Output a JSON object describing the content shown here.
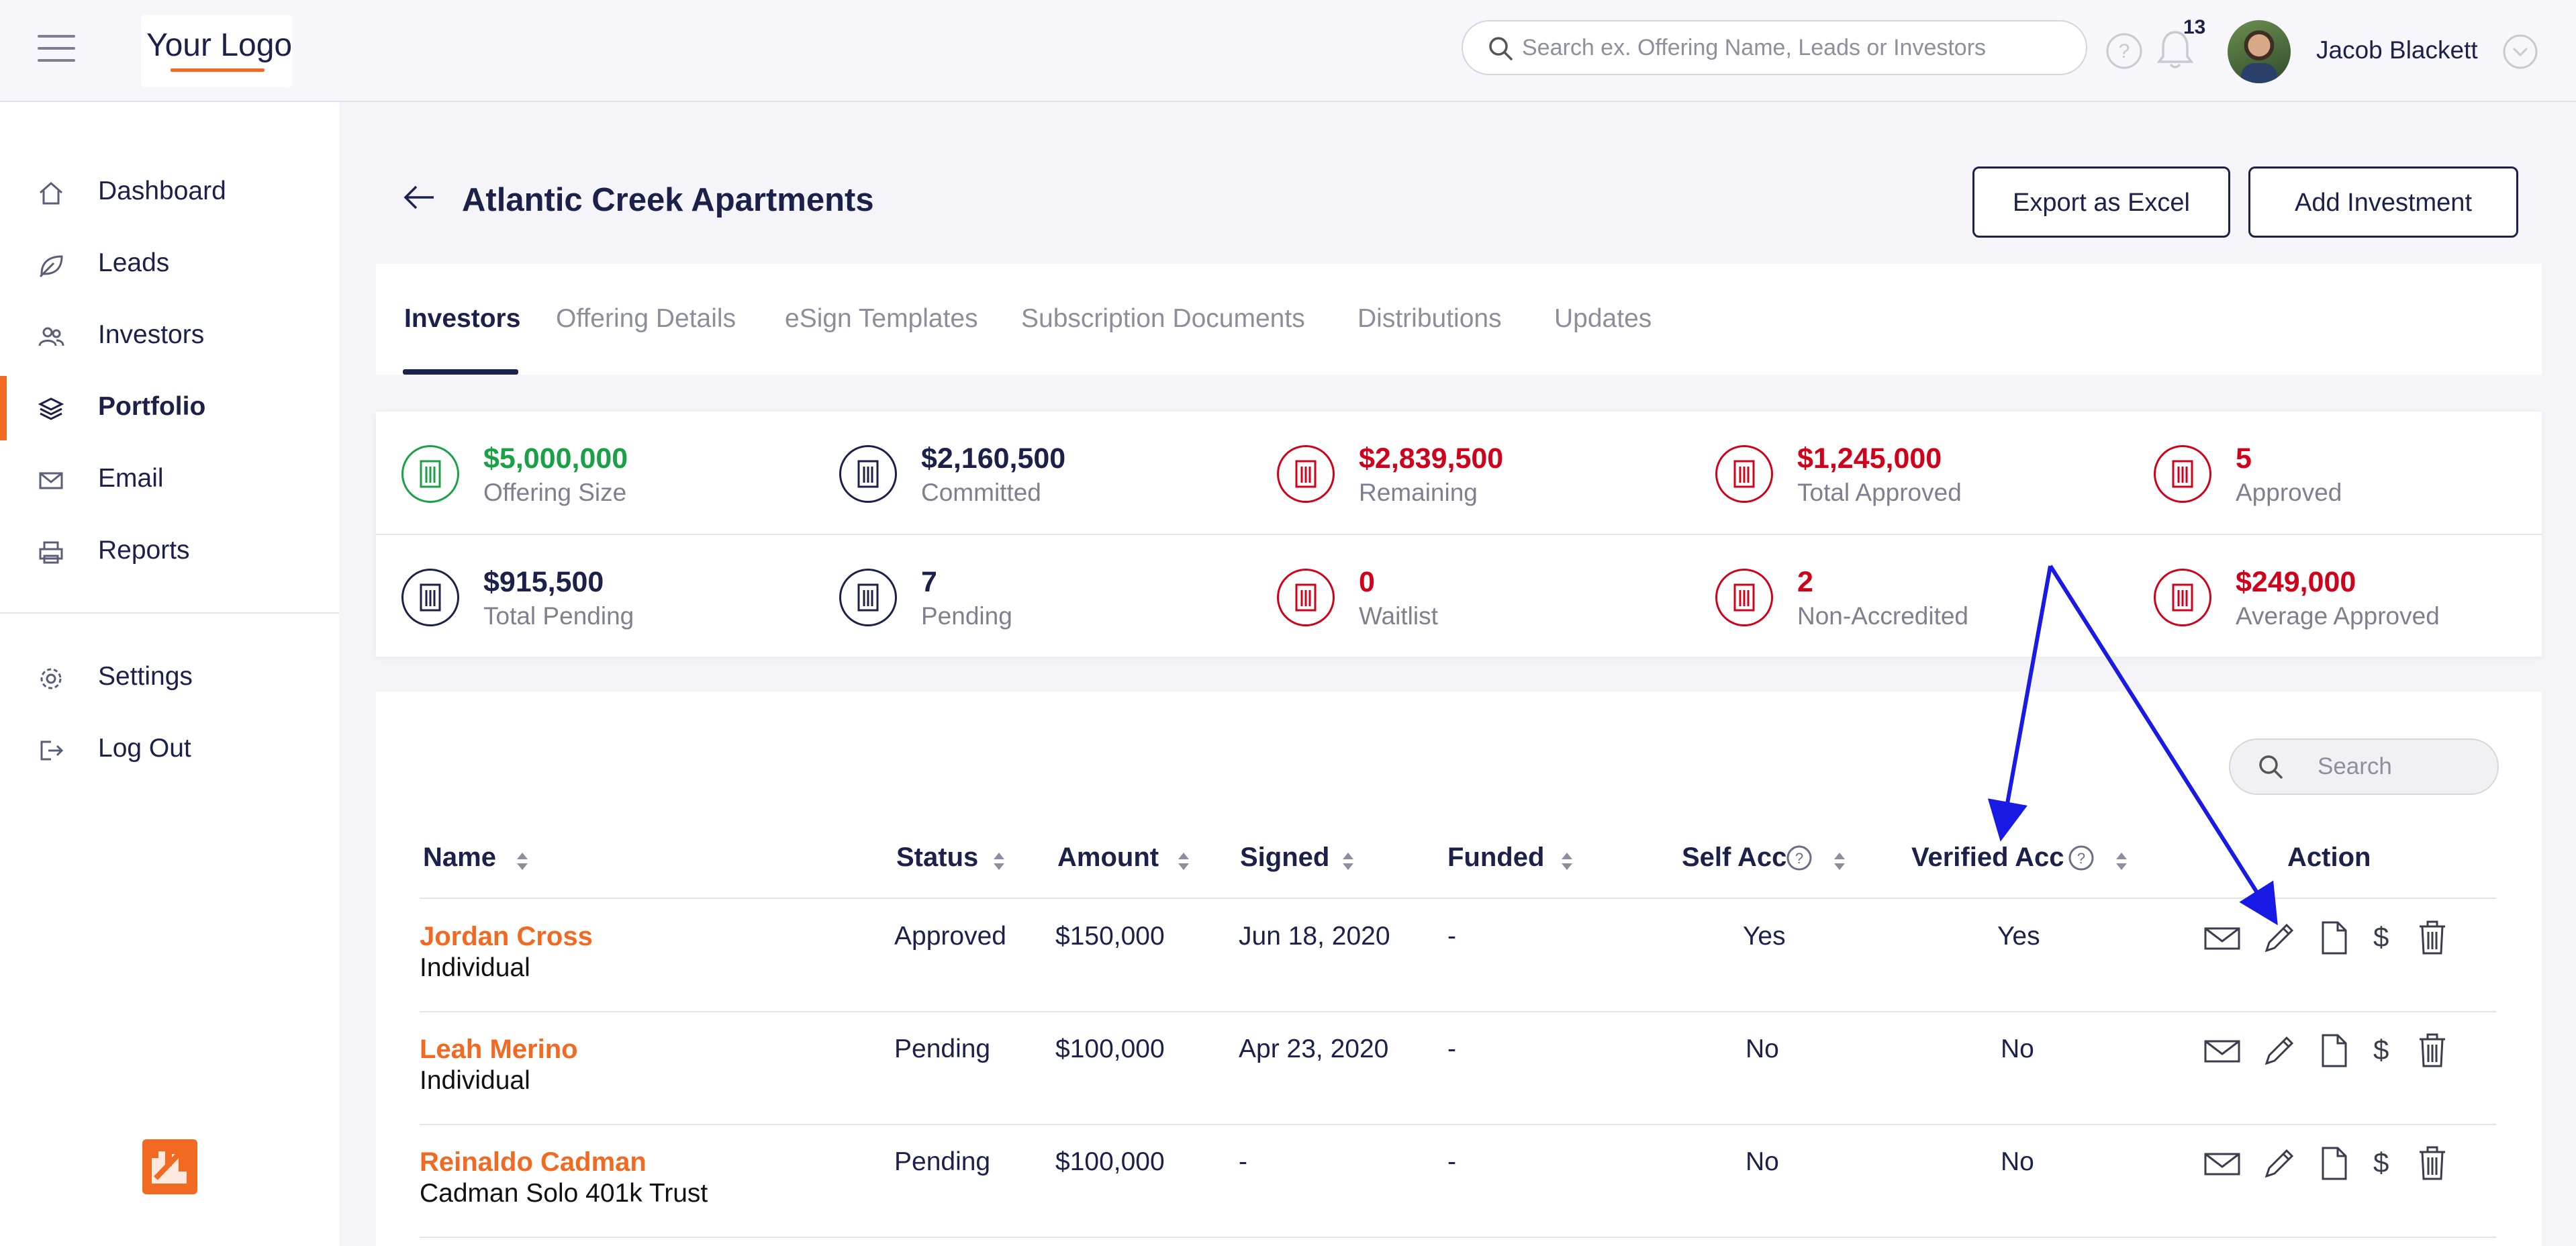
{
  "header": {
    "logo": "Your Logo",
    "search_placeholder": "Search ex. Offering Name, Leads or Investors",
    "notification_count": "13",
    "user_name": "Jacob Blackett"
  },
  "sidebar": {
    "items": [
      {
        "label": "Dashboard",
        "icon": "home-icon"
      },
      {
        "label": "Leads",
        "icon": "leaf-icon"
      },
      {
        "label": "Investors",
        "icon": "users-icon"
      },
      {
        "label": "Portfolio",
        "icon": "layers-icon",
        "active": true
      },
      {
        "label": "Email",
        "icon": "mail-icon"
      },
      {
        "label": "Reports",
        "icon": "printer-icon"
      }
    ],
    "bottom_items": [
      {
        "label": "Settings",
        "icon": "gear-icon"
      },
      {
        "label": "Log Out",
        "icon": "logout-icon"
      }
    ]
  },
  "offering": {
    "title": "Atlantic Creek Apartments",
    "export_label": "Export as Excel",
    "add_label": "Add Investment"
  },
  "tabs": [
    "Investors",
    "Offering Details",
    "eSign Templates",
    "Subscription Documents",
    "Distributions",
    "Updates"
  ],
  "stats": [
    {
      "value": "$5,000,000",
      "label": "Offering Size"
    },
    {
      "value": "$2,160,500",
      "label": "Committed"
    },
    {
      "value": "$2,839,500",
      "label": "Remaining"
    },
    {
      "value": "$1,245,000",
      "label": "Total Approved"
    },
    {
      "value": "5",
      "label": "Approved"
    },
    {
      "value": "$915,500",
      "label": "Total Pending"
    },
    {
      "value": "7",
      "label": "Pending"
    },
    {
      "value": "0",
      "label": "Waitlist"
    },
    {
      "value": "2",
      "label": "Non-Accredited"
    },
    {
      "value": "$249,000",
      "label": "Average Approved"
    }
  ],
  "colors": {
    "brand_orange": "#f26a22",
    "navy": "#1b2148",
    "green": "#1aa146",
    "red": "#d0021b",
    "annotation_blue": "#1a1ae6"
  },
  "table": {
    "search_placeholder": "Search",
    "columns": [
      "Name",
      "Status",
      "Amount",
      "Signed",
      "Funded",
      "Self Acc",
      "Verified Acc",
      "Action"
    ],
    "rows": [
      {
        "name": "Jordan Cross",
        "type": "Individual",
        "status": "Approved",
        "amount": "$150,000",
        "signed": "Jun 18, 2020",
        "funded": "-",
        "self_acc": "Yes",
        "verified_acc": "Yes"
      },
      {
        "name": "Leah Merino",
        "type": "Individual",
        "status": "Pending",
        "amount": "$100,000",
        "signed": "Apr 23, 2020",
        "funded": "-",
        "self_acc": "No",
        "verified_acc": "No"
      },
      {
        "name": "Reinaldo Cadman",
        "type": "Cadman Solo 401k Trust",
        "status": "Pending",
        "amount": "$100,000",
        "signed": "-",
        "funded": "-",
        "self_acc": "No",
        "verified_acc": "No"
      }
    ]
  }
}
